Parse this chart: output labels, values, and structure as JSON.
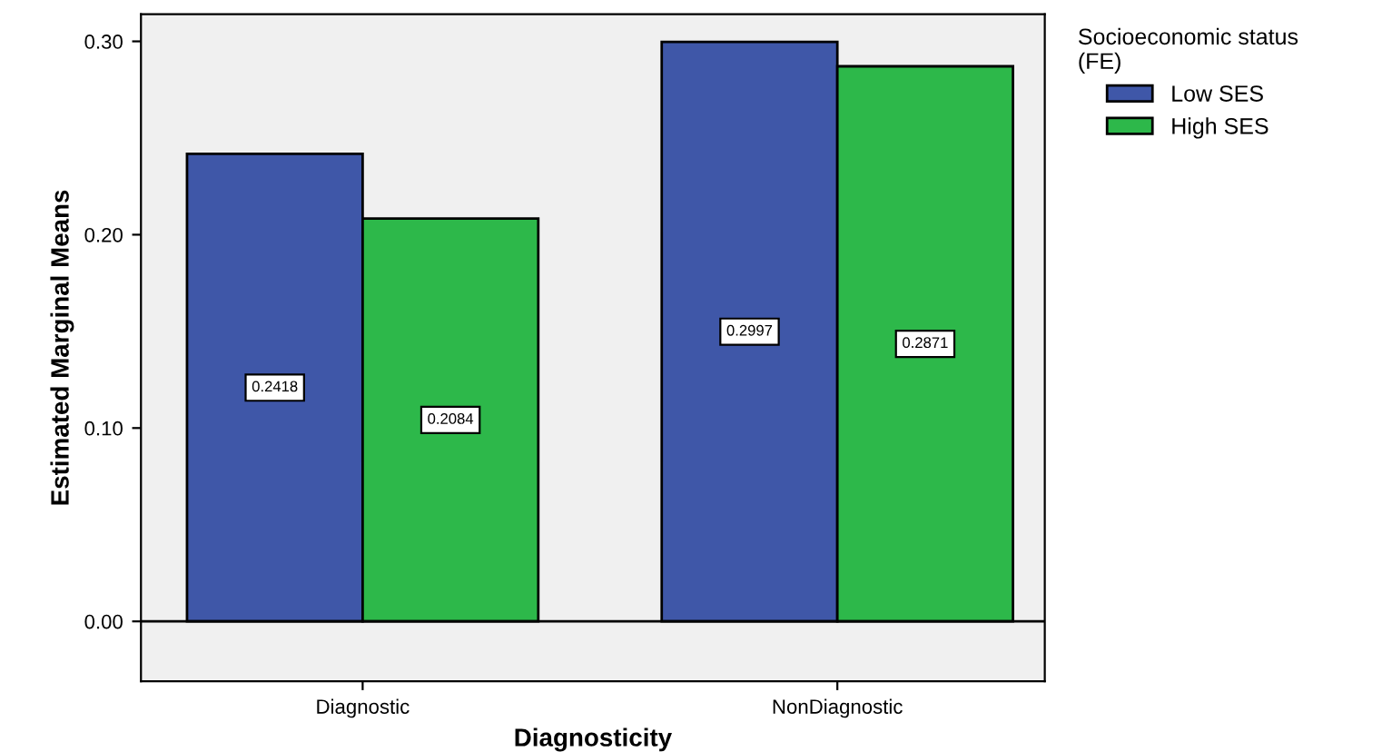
{
  "chart_data": {
    "type": "bar",
    "xlabel": "Diagnosticity",
    "ylabel": "Estimated Marginal Means",
    "categories": [
      "Diagnostic",
      "NonDiagnostic"
    ],
    "series": [
      {
        "name": "Low SES",
        "color": "#3f57a8",
        "values": [
          0.2418,
          0.2997
        ]
      },
      {
        "name": "High SES",
        "color": "#2db84a",
        "values": [
          0.2084,
          0.2871
        ]
      }
    ],
    "legend_title": "Socioeconomic status\n(FE)",
    "legend": "right",
    "ylim": [
      -0.031,
      0.314
    ],
    "yticks": [
      {
        "value": 0,
        "label": "0.00"
      },
      {
        "value": 0.1,
        "label": "0.10"
      },
      {
        "value": 0.2,
        "label": "0.20"
      },
      {
        "value": 0.3,
        "label": "0.30"
      }
    ],
    "ref_lines": [
      {
        "axis": "y",
        "value": 0,
        "color": "#000000"
      }
    ],
    "data_labels": true,
    "grid": false
  }
}
